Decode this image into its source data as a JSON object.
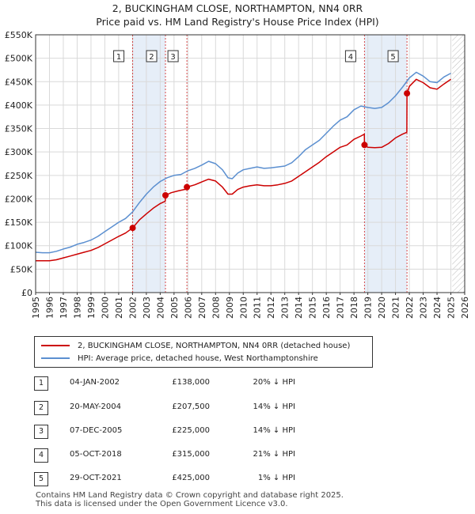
{
  "title_line1": "2, BUCKINGHAM CLOSE, NORTHAMPTON, NN4 0RR",
  "title_line2": "Price paid vs. HM Land Registry's House Price Index (HPI)",
  "colors": {
    "property": "#cc0000",
    "hpi": "#5b8fd0",
    "grid": "#d9d9d9",
    "shade": "#e6eef8",
    "marker_line": "#cc0000",
    "hatch": "#bbbbbb"
  },
  "legend": {
    "property_label": "2, BUCKINGHAM CLOSE, NORTHAMPTON, NN4 0RR (detached house)",
    "hpi_label": "HPI: Average price, detached house, West Northamptonshire"
  },
  "transactions": [
    {
      "num": "1",
      "date": "04-JAN-2002",
      "price": "£138,000",
      "hpi": "20% ↓ HPI"
    },
    {
      "num": "2",
      "date": "20-MAY-2004",
      "price": "£207,500",
      "hpi": "14% ↓ HPI"
    },
    {
      "num": "3",
      "date": "07-DEC-2005",
      "price": "£225,000",
      "hpi": "14% ↓ HPI"
    },
    {
      "num": "4",
      "date": "05-OCT-2018",
      "price": "£315,000",
      "hpi": "21% ↓ HPI"
    },
    {
      "num": "5",
      "date": "29-OCT-2021",
      "price": "£425,000",
      "hpi": "1% ↓ HPI"
    }
  ],
  "footer": {
    "line1": "Contains HM Land Registry data © Crown copyright and database right 2025.",
    "line2": "This data is licensed under the Open Government Licence v3.0."
  },
  "chart_data": {
    "type": "line",
    "title": "2, BUCKINGHAM CLOSE, NORTHAMPTON, NN4 0RR",
    "subtitle": "Price paid vs. HM Land Registry's House Price Index (HPI)",
    "xlabel": "",
    "ylabel": "",
    "xlim": [
      1995,
      2026
    ],
    "ylim": [
      0,
      550000
    ],
    "x_ticks": [
      "1995",
      "1996",
      "1997",
      "1998",
      "1999",
      "2000",
      "2001",
      "2002",
      "2003",
      "2004",
      "2005",
      "2006",
      "2007",
      "2008",
      "2009",
      "2010",
      "2011",
      "2012",
      "2013",
      "2014",
      "2015",
      "2016",
      "2017",
      "2018",
      "2019",
      "2020",
      "2021",
      "2022",
      "2023",
      "2024",
      "2025",
      "2026"
    ],
    "y_ticks": [
      {
        "value": 0,
        "label": "£0"
      },
      {
        "value": 50000,
        "label": "£50K"
      },
      {
        "value": 100000,
        "label": "£100K"
      },
      {
        "value": 150000,
        "label": "£150K"
      },
      {
        "value": 200000,
        "label": "£200K"
      },
      {
        "value": 250000,
        "label": "£250K"
      },
      {
        "value": 300000,
        "label": "£300K"
      },
      {
        "value": 350000,
        "label": "£350K"
      },
      {
        "value": 400000,
        "label": "£400K"
      },
      {
        "value": 450000,
        "label": "£450K"
      },
      {
        "value": 500000,
        "label": "£500K"
      },
      {
        "value": 550000,
        "label": "£550K"
      }
    ],
    "future_from": 2025.1,
    "sales": [
      {
        "label": "1",
        "x": 2002.01,
        "y": 138000
      },
      {
        "label": "2",
        "x": 2004.38,
        "y": 207500
      },
      {
        "label": "3",
        "x": 2005.93,
        "y": 225000
      },
      {
        "label": "4",
        "x": 2018.76,
        "y": 315000
      },
      {
        "label": "5",
        "x": 2021.83,
        "y": 425000
      }
    ],
    "series": [
      {
        "name": "HPI: Average price, detached house, West Northamptonshire",
        "x": [
          1995,
          1995.5,
          1996,
          1996.5,
          1997,
          1997.5,
          1998,
          1998.5,
          1999,
          1999.5,
          2000,
          2000.5,
          2001,
          2001.5,
          2002,
          2002.5,
          2003,
          2003.5,
          2004,
          2004.5,
          2005,
          2005.5,
          2006,
          2006.5,
          2007,
          2007.5,
          2008,
          2008.5,
          2008.9,
          2009.2,
          2009.6,
          2010,
          2010.5,
          2011,
          2011.5,
          2012,
          2012.5,
          2013,
          2013.5,
          2014,
          2014.5,
          2015,
          2015.5,
          2016,
          2016.5,
          2017,
          2017.5,
          2018,
          2018.5,
          2019,
          2019.5,
          2020,
          2020.5,
          2021,
          2021.5,
          2022,
          2022.5,
          2023,
          2023.5,
          2024,
          2024.5,
          2025
        ],
        "y": [
          86000,
          85000,
          85000,
          88000,
          93000,
          97000,
          103000,
          107000,
          112000,
          120000,
          130000,
          140000,
          150000,
          158000,
          172000,
          192000,
          210000,
          225000,
          237000,
          245000,
          250000,
          252000,
          260000,
          265000,
          272000,
          280000,
          275000,
          262000,
          245000,
          243000,
          255000,
          262000,
          265000,
          268000,
          265000,
          266000,
          268000,
          270000,
          277000,
          290000,
          305000,
          315000,
          325000,
          340000,
          355000,
          368000,
          375000,
          390000,
          398000,
          395000,
          393000,
          395000,
          405000,
          420000,
          438000,
          458000,
          470000,
          462000,
          450000,
          448000,
          460000,
          468000
        ]
      },
      {
        "name": "2, BUCKINGHAM CLOSE, NORTHAMPTON, NN4 0RR (detached house)",
        "x": [
          1995,
          1995.5,
          1996,
          1996.5,
          1997,
          1997.5,
          1998,
          1998.5,
          1999,
          1999.5,
          2000,
          2000.5,
          2001,
          2001.5,
          2002.01,
          2002.5,
          2003,
          2003.5,
          2004,
          2004.37,
          2004.38,
          2004.8,
          2005.3,
          2005.92,
          2005.93,
          2006.5,
          2007,
          2007.5,
          2008,
          2008.5,
          2008.9,
          2009.2,
          2009.6,
          2010,
          2010.5,
          2011,
          2011.5,
          2012,
          2012.5,
          2013,
          2013.5,
          2014,
          2014.5,
          2015,
          2015.5,
          2016,
          2016.5,
          2017,
          2017.5,
          2018,
          2018.5,
          2018.75,
          2018.76,
          2019,
          2019.5,
          2020,
          2020.5,
          2021,
          2021.5,
          2021.82,
          2021.83,
          2022,
          2022.5,
          2023,
          2023.5,
          2024,
          2024.5,
          2025
        ],
        "y": [
          68000,
          68000,
          68000,
          70000,
          74000,
          78000,
          82000,
          86000,
          90000,
          96000,
          104000,
          112000,
          120000,
          127000,
          138000,
          155000,
          168000,
          180000,
          190000,
          195000,
          207500,
          213000,
          217000,
          221000,
          225000,
          230000,
          236000,
          242000,
          238000,
          225000,
          210000,
          210000,
          220000,
          225000,
          228000,
          230000,
          228000,
          228000,
          230000,
          233000,
          238000,
          248000,
          258000,
          268000,
          278000,
          290000,
          300000,
          310000,
          315000,
          327000,
          334000,
          338000,
          315000,
          310000,
          309000,
          310000,
          318000,
          330000,
          338000,
          342000,
          425000,
          440000,
          455000,
          448000,
          437000,
          434000,
          445000,
          455000
        ]
      }
    ]
  }
}
